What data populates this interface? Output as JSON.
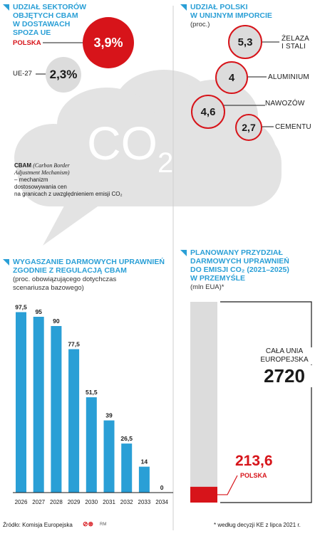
{
  "cbam_share": {
    "title_lines": [
      "UDZIAŁ SEKTORÓW",
      "OBJĘTYCH CBAM",
      "W DOSTAWACH",
      "SPOZA UE"
    ],
    "poland_label": "POLSKA",
    "poland_value": "3,9%",
    "eu_label": "UE-27",
    "eu_value": "2,3%"
  },
  "import_share": {
    "title_lines": [
      "UDZIAŁ POLSKI",
      "W UNIJNYM IMPORCIE"
    ],
    "subtitle": "(proc.)",
    "items": [
      {
        "value": "5,3",
        "label_lines": [
          "ŻELAZA",
          "I STALI"
        ]
      },
      {
        "value": "4",
        "label_lines": [
          "ALUMINIUM"
        ]
      },
      {
        "value": "4,6",
        "label_lines": [
          "NAWOZÓW"
        ]
      },
      {
        "value": "2,7",
        "label_lines": [
          "CEMENTU"
        ]
      }
    ]
  },
  "cloud": {
    "co": "CO",
    "two": "2",
    "cbam_bold": "CBAM",
    "cbam_italic": "(Carbon Border",
    "cbam_italic2": "Adjustment Mechanism)",
    "desc_lines": [
      "– mechanizm",
      "dostosowywania cen",
      "na granicach z uwzględnieniem emisji CO₂"
    ]
  },
  "phaseout": {
    "title_lines": [
      "WYGASZANIE DARMOWYCH UPRAWNIEŃ",
      "ZGODNIE Z REGULACJĄ CBAM"
    ],
    "subtitle_lines": [
      "(proc. obowiązującego dotychczas",
      "scenariusza bazowego)"
    ]
  },
  "allocation": {
    "title_lines": [
      "PLANOWANY PRZYDZIAŁ",
      "DARMOWYCH UPRAWNIEŃ",
      "DO EMISJI CO₂ (2021–2025)",
      "W PRZEMYŚLE"
    ],
    "subtitle": "(mln EUA)*",
    "eu_label_lines": [
      "CAŁA UNIA",
      "EUROPEJSKA"
    ],
    "eu_value": "2720",
    "pl_value": "213,6",
    "pl_label": "POLSKA"
  },
  "footer": {
    "source": "Źródło: Komisja Europejska",
    "credit": "RM",
    "note": "* według decyzji KE z lipca 2021 r."
  },
  "chart_data": [
    {
      "type": "bar",
      "categories": [
        "2026",
        "2027",
        "2028",
        "2029",
        "2030",
        "2031",
        "2032",
        "2033",
        "2034"
      ],
      "values": [
        97.5,
        95,
        90,
        77.5,
        51.5,
        39,
        26.5,
        14,
        0
      ],
      "value_labels": [
        "97,5",
        "95",
        "90",
        "77,5",
        "51,5",
        "39",
        "26,5",
        "14",
        "0"
      ],
      "title": "WYGASZANIE DARMOWYCH UPRAWNIEŃ ZGODNIE Z REGULACJĄ CBAM",
      "ylim": [
        0,
        100
      ],
      "colors": {
        "bar": "#2a9fd6"
      }
    },
    {
      "type": "bar",
      "categories": [
        "CAŁA UNIA EUROPEJSKA",
        "POLSKA"
      ],
      "values": [
        2720,
        213.6
      ],
      "title": "PLANOWANY PRZYDZIAŁ DARMOWYCH UPRAWNIEŃ DO EMISJI CO₂ (2021–2025) W PRZEMYŚLE",
      "colors": {
        "total": "#dcdcdc",
        "poland": "#d7141a"
      }
    }
  ],
  "colors": {
    "accent": "#2a9fd6",
    "red": "#d7141a",
    "gray": "#dcdcdc"
  }
}
